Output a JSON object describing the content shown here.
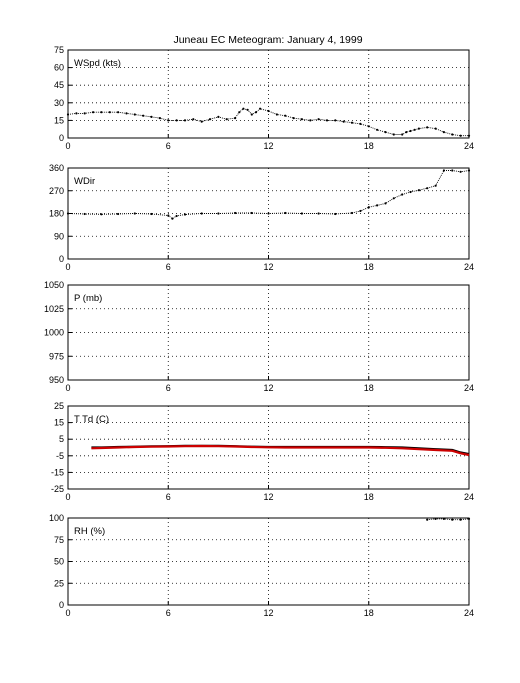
{
  "title": "Juneau EC Meteogram:   January  4, 1999",
  "colors": {
    "obs": "#000000",
    "dewpoint": "#cc0000"
  },
  "chart_data": [
    {
      "type": "scatter",
      "label": "WSpd (kts)",
      "xlim": [
        0,
        24
      ],
      "xticks": [
        0,
        6,
        12,
        18,
        24
      ],
      "ylim": [
        0,
        75
      ],
      "yticks": [
        0,
        15,
        30,
        45,
        60,
        75
      ],
      "grid": true,
      "series": [
        {
          "color": "#000000",
          "x": [
            0,
            0.5,
            1,
            1.5,
            2,
            2.5,
            3,
            3.5,
            4,
            4.5,
            5,
            5.5,
            6,
            6.5,
            7,
            7.5,
            8,
            8.5,
            9,
            9.5,
            10,
            10.25,
            10.5,
            10.75,
            11,
            11.25,
            11.5,
            12,
            12.5,
            13,
            13.5,
            14,
            14.5,
            15,
            15.5,
            16,
            16.5,
            17,
            17.5,
            18,
            18.5,
            19,
            19.5,
            20,
            20.25,
            20.5,
            20.75,
            21,
            21.5,
            22,
            22.5,
            23,
            23.5,
            24
          ],
          "y": [
            20,
            21,
            21,
            22,
            22,
            22,
            22,
            21,
            20,
            19,
            18,
            17,
            15,
            15,
            15,
            16,
            14,
            16,
            18,
            16,
            17,
            22,
            25,
            24,
            20,
            22,
            25,
            23,
            20,
            19,
            17,
            16,
            15,
            16,
            15,
            15,
            14,
            13,
            12,
            10,
            7,
            5,
            3,
            3,
            5,
            6,
            7,
            8,
            9,
            8,
            5,
            3,
            2,
            2
          ]
        }
      ]
    },
    {
      "type": "scatter",
      "label": "WDir",
      "xlim": [
        0,
        24
      ],
      "xticks": [
        0,
        6,
        12,
        18,
        24
      ],
      "ylim": [
        0,
        360
      ],
      "yticks": [
        0,
        90,
        180,
        270,
        360
      ],
      "grid": true,
      "series": [
        {
          "color": "#000000",
          "x": [
            0,
            1,
            2,
            3,
            4,
            5,
            6,
            6.25,
            6.5,
            7,
            8,
            9,
            10,
            11,
            12,
            13,
            14,
            15,
            16,
            17,
            17.5,
            18,
            18.5,
            19,
            19.5,
            20,
            20.5,
            21,
            21.5,
            22,
            22.5,
            23,
            23.5,
            24
          ],
          "y": [
            180,
            178,
            177,
            178,
            180,
            178,
            172,
            160,
            170,
            176,
            180,
            180,
            182,
            182,
            180,
            182,
            180,
            180,
            178,
            182,
            190,
            205,
            212,
            220,
            240,
            255,
            265,
            272,
            280,
            290,
            350,
            350,
            345,
            350
          ]
        }
      ]
    },
    {
      "type": "scatter",
      "label": "P (mb)",
      "xlim": [
        0,
        24
      ],
      "xticks": [
        0,
        6,
        12,
        18,
        24
      ],
      "ylim": [
        950,
        1050
      ],
      "yticks": [
        950,
        975,
        1000,
        1025,
        1050
      ],
      "grid": true,
      "series": [
        {
          "color": "#000000",
          "x": [],
          "y": []
        }
      ]
    },
    {
      "type": "line",
      "label": "T Td (C)",
      "xlim": [
        0,
        24
      ],
      "xticks": [
        0,
        6,
        12,
        18,
        24
      ],
      "ylim": [
        -25,
        25
      ],
      "yticks": [
        -25,
        -15,
        -5,
        5,
        15,
        25
      ],
      "grid": true,
      "series": [
        {
          "color": "#000000",
          "x": [
            1.4,
            2,
            3,
            4,
            5,
            6,
            7,
            8,
            9,
            10,
            11,
            12,
            13,
            14,
            15,
            16,
            17,
            18,
            19,
            20,
            21,
            22,
            23,
            23.5,
            24
          ],
          "y": [
            0,
            0,
            0.3,
            0.5,
            0.7,
            0.8,
            1,
            1,
            1,
            0.8,
            0.5,
            0.3,
            0.3,
            0.3,
            0.3,
            0.3,
            0.3,
            0.3,
            0.2,
            0,
            -0.5,
            -1,
            -1.5,
            -3,
            -4
          ]
        },
        {
          "color": "#cc0000",
          "x": [
            1.4,
            2,
            3,
            4,
            5,
            6,
            7,
            8,
            9,
            10,
            11,
            12,
            13,
            14,
            15,
            16,
            17,
            18,
            19,
            20,
            21,
            22,
            23,
            23.5,
            24
          ],
          "y": [
            -0.5,
            -0.3,
            0,
            0.3,
            0.5,
            0.6,
            0.8,
            0.9,
            0.8,
            0.6,
            0.3,
            0.1,
            0,
            0,
            0,
            0,
            0,
            0,
            -0.2,
            -0.5,
            -1,
            -1.5,
            -2,
            -3.5,
            -4.5
          ]
        }
      ]
    },
    {
      "type": "scatter",
      "label": "RH (%)",
      "xlim": [
        0,
        24
      ],
      "xticks": [
        0,
        6,
        12,
        18,
        24
      ],
      "ylim": [
        0,
        100
      ],
      "yticks": [
        0,
        25,
        50,
        75,
        100
      ],
      "grid": true,
      "series": [
        {
          "color": "#000000",
          "x": [
            21.5,
            22,
            22.5,
            23,
            23.5,
            24
          ],
          "y": [
            98,
            99,
            99,
            98,
            98,
            99
          ]
        }
      ]
    }
  ]
}
